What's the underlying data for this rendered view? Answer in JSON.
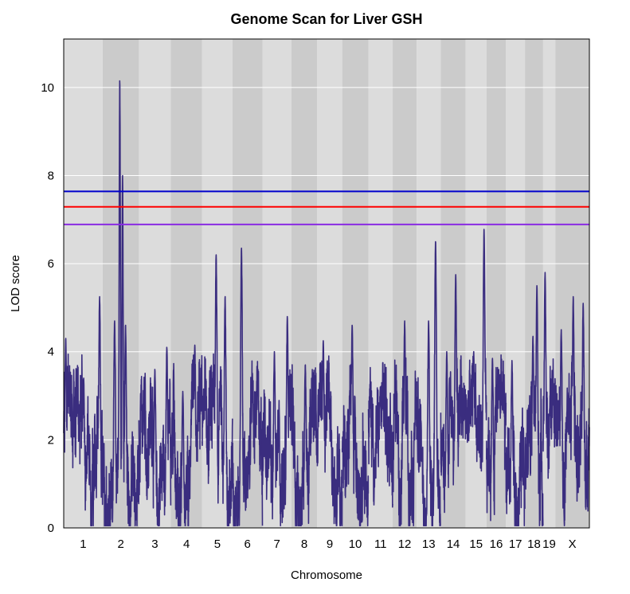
{
  "chart_data": {
    "type": "line",
    "title": "Genome Scan for Liver GSH",
    "xlabel": "Chromosome",
    "ylabel": "LOD score",
    "ylim": [
      0,
      11.1
    ],
    "yticks": [
      0,
      2,
      4,
      6,
      8,
      10
    ],
    "grid": "horizontal",
    "background_bands": "alternating light/dark gray per chromosome",
    "chromosomes": [
      {
        "name": "1",
        "length": 195
      },
      {
        "name": "2",
        "length": 182
      },
      {
        "name": "3",
        "length": 160
      },
      {
        "name": "4",
        "length": 157
      },
      {
        "name": "5",
        "length": 152
      },
      {
        "name": "6",
        "length": 150
      },
      {
        "name": "7",
        "length": 145
      },
      {
        "name": "8",
        "length": 130
      },
      {
        "name": "9",
        "length": 125
      },
      {
        "name": "10",
        "length": 131
      },
      {
        "name": "11",
        "length": 122
      },
      {
        "name": "12",
        "length": 120
      },
      {
        "name": "13",
        "length": 121
      },
      {
        "name": "14",
        "length": 125
      },
      {
        "name": "15",
        "length": 104
      },
      {
        "name": "16",
        "length": 98
      },
      {
        "name": "17",
        "length": 95
      },
      {
        "name": "18",
        "length": 91
      },
      {
        "name": "19",
        "length": 61
      },
      {
        "name": "X",
        "length": 171
      }
    ],
    "thresholds": [
      {
        "value": 7.64,
        "color": "#0000cc"
      },
      {
        "value": 7.29,
        "color": "#ff0000"
      },
      {
        "value": 6.89,
        "color": "#8a2be2"
      }
    ],
    "series": [
      {
        "color": "#3a2d7f",
        "peaks": [
          {
            "chr": "1",
            "pos": 10,
            "lod": 4.3
          },
          {
            "chr": "1",
            "pos": 100,
            "lod": 3.4
          },
          {
            "chr": "1",
            "pos": 180,
            "lod": 5.25
          },
          {
            "chr": "2",
            "pos": 60,
            "lod": 4.7
          },
          {
            "chr": "2",
            "pos": 86,
            "lod": 10.15
          },
          {
            "chr": "2",
            "pos": 100,
            "lod": 8.0
          },
          {
            "chr": "2",
            "pos": 115,
            "lod": 4.6
          },
          {
            "chr": "3",
            "pos": 80,
            "lod": 3.6
          },
          {
            "chr": "3",
            "pos": 140,
            "lod": 4.1
          },
          {
            "chr": "4",
            "pos": 60,
            "lod": 3.1
          },
          {
            "chr": "4",
            "pos": 120,
            "lod": 4.15
          },
          {
            "chr": "5",
            "pos": 70,
            "lod": 6.2
          },
          {
            "chr": "5",
            "pos": 115,
            "lod": 5.25
          },
          {
            "chr": "6",
            "pos": 45,
            "lod": 6.35
          },
          {
            "chr": "6",
            "pos": 100,
            "lod": 3.5
          },
          {
            "chr": "7",
            "pos": 60,
            "lod": 4.0
          },
          {
            "chr": "7",
            "pos": 125,
            "lod": 4.8
          },
          {
            "chr": "8",
            "pos": 70,
            "lod": 3.7
          },
          {
            "chr": "9",
            "pos": 30,
            "lod": 4.25
          },
          {
            "chr": "10",
            "pos": 50,
            "lod": 4.6
          },
          {
            "chr": "11",
            "pos": 60,
            "lod": 3.2
          },
          {
            "chr": "12",
            "pos": 60,
            "lod": 4.7
          },
          {
            "chr": "13",
            "pos": 60,
            "lod": 4.7
          },
          {
            "chr": "13",
            "pos": 95,
            "lod": 6.5
          },
          {
            "chr": "14",
            "pos": 30,
            "lod": 4.0
          },
          {
            "chr": "14",
            "pos": 75,
            "lod": 5.75
          },
          {
            "chr": "15",
            "pos": 40,
            "lod": 4.0
          },
          {
            "chr": "15",
            "pos": 92,
            "lod": 6.78
          },
          {
            "chr": "16",
            "pos": 30,
            "lod": 3.85
          },
          {
            "chr": "17",
            "pos": 30,
            "lod": 3.8
          },
          {
            "chr": "18",
            "pos": 40,
            "lod": 4.35
          },
          {
            "chr": "18",
            "pos": 60,
            "lod": 5.5
          },
          {
            "chr": "19",
            "pos": 10,
            "lod": 5.8
          },
          {
            "chr": "19",
            "pos": 50,
            "lod": 3.5
          },
          {
            "chr": "X",
            "pos": 30,
            "lod": 4.5
          },
          {
            "chr": "X",
            "pos": 90,
            "lod": 5.25
          },
          {
            "chr": "X",
            "pos": 140,
            "lod": 5.1
          }
        ]
      }
    ]
  }
}
